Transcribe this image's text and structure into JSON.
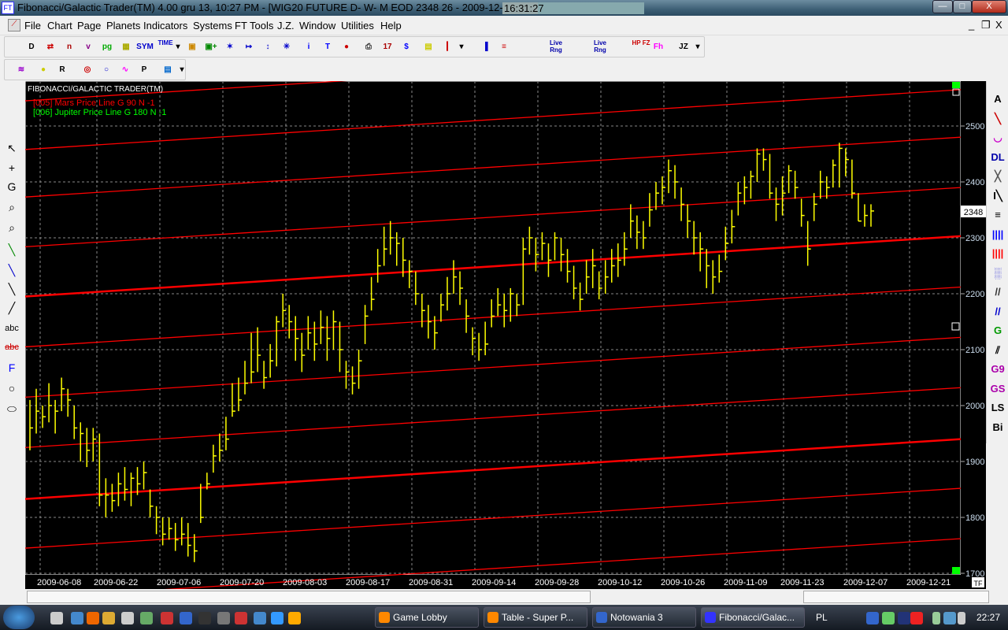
{
  "window": {
    "title": "Fibonacci/Galactic Trader(TM) 4.00 gru 13,  10:27 PM - [WIG20 FUTURE D- W- M EOD  2348     26 - 2009-12-11]",
    "clock": "16:31:27",
    "minimize": "—",
    "restore": "□",
    "close": "X"
  },
  "menu": {
    "items": [
      "File",
      "Chart",
      "Page",
      "Planets",
      "Indicators",
      "Systems",
      "FT Tools",
      "J.Z.",
      "Window",
      "Utilities",
      "Help"
    ],
    "mdi_min": "_",
    "mdi_restore": "❐",
    "mdi_close": "X"
  },
  "toolbar1": {
    "buttons": [
      {
        "name": "new-chart",
        "glyph": "D",
        "color": "#000"
      },
      {
        "name": "open-chart",
        "glyph": "⇄",
        "color": "#c00"
      },
      {
        "name": "bars-n",
        "glyph": "n",
        "color": "#a00"
      },
      {
        "name": "bars-v",
        "glyph": "v",
        "color": "#808"
      },
      {
        "name": "pg",
        "glyph": "pg",
        "color": "#0a0"
      },
      {
        "name": "grid",
        "glyph": "▦",
        "color": "#aa0"
      },
      {
        "name": "sym",
        "glyph": "SYM",
        "color": "#00c"
      },
      {
        "name": "time",
        "glyph": "TIME",
        "color": "#00c"
      },
      {
        "name": "dropdown",
        "glyph": "▾",
        "color": "#000"
      },
      {
        "name": "layers",
        "glyph": "▣",
        "color": "#c80"
      },
      {
        "name": "add-layer",
        "glyph": "▣+",
        "color": "#080"
      },
      {
        "name": "compress",
        "glyph": "✶",
        "color": "#00c"
      },
      {
        "name": "expand",
        "glyph": "↦",
        "color": "#00c"
      },
      {
        "name": "scroll",
        "glyph": "↕",
        "color": "#00c"
      },
      {
        "name": "zoom-in",
        "glyph": "✳",
        "color": "#00c"
      },
      {
        "name": "info",
        "glyph": "i",
        "color": "#00f"
      },
      {
        "name": "text",
        "glyph": "T",
        "color": "#00f"
      },
      {
        "name": "traffic-light",
        "glyph": "●",
        "color": "#c00"
      },
      {
        "name": "print",
        "glyph": "⎙",
        "color": "#333"
      },
      {
        "name": "calendar",
        "glyph": "17",
        "color": "#a00"
      },
      {
        "name": "dollar",
        "glyph": "$",
        "color": "#00f"
      },
      {
        "name": "ruler",
        "glyph": "▤",
        "color": "#cc0"
      },
      {
        "name": "candles",
        "glyph": "┃",
        "color": "#c00"
      },
      {
        "name": "dropdown2",
        "glyph": "▾",
        "color": "#000"
      },
      {
        "name": "bar-chart",
        "glyph": "▐",
        "color": "#00c"
      },
      {
        "name": "multi-chart",
        "glyph": "≡",
        "color": "#c00"
      },
      {
        "name": "live-rng-1",
        "glyph": "Live Rng",
        "color": "#00a"
      },
      {
        "name": "live-rng-2",
        "glyph": "Live Rng",
        "color": "#00a"
      },
      {
        "name": "hp-fz",
        "glyph": "HP FZ",
        "color": "#c00"
      },
      {
        "name": "fz-h",
        "glyph": "Fh",
        "color": "#f0f"
      },
      {
        "name": "jz",
        "glyph": "JZ",
        "color": "#000"
      },
      {
        "name": "dropdown3",
        "glyph": "▾",
        "color": "#000"
      }
    ]
  },
  "toolbar2": {
    "buttons": [
      {
        "name": "planet-lines",
        "glyph": "≋",
        "color": "#90c"
      },
      {
        "name": "planets-dots",
        "glyph": "●",
        "color": "#cc0"
      },
      {
        "name": "planets-r",
        "glyph": "R",
        "color": "#000"
      },
      {
        "name": "target",
        "glyph": "◎",
        "color": "#c00"
      },
      {
        "name": "wheel",
        "glyph": "○",
        "color": "#00c"
      },
      {
        "name": "cycles",
        "glyph": "∿",
        "color": "#f0f"
      },
      {
        "name": "p-cycle",
        "glyph": "P",
        "color": "#000"
      },
      {
        "name": "notes",
        "glyph": "▤",
        "color": "#06c"
      },
      {
        "name": "dropdown",
        "glyph": "▾",
        "color": "#000"
      }
    ]
  },
  "left_tools": [
    {
      "name": "pointer",
      "glyph": "↖"
    },
    {
      "name": "crosshair",
      "glyph": "+"
    },
    {
      "name": "gann",
      "glyph": "G"
    },
    {
      "name": "zoom",
      "glyph": "⌕"
    },
    {
      "name": "zoom-gray",
      "glyph": "⌕"
    },
    {
      "name": "trendline-green",
      "glyph": "╲"
    },
    {
      "name": "trendline-blue",
      "glyph": "╲"
    },
    {
      "name": "trendline-black",
      "glyph": "╲"
    },
    {
      "name": "pitchfork",
      "glyph": "╱"
    },
    {
      "name": "text-abc",
      "glyph": "abc"
    },
    {
      "name": "delete-text",
      "glyph": "abc"
    },
    {
      "name": "fib",
      "glyph": "F"
    },
    {
      "name": "circle",
      "glyph": "○"
    },
    {
      "name": "ellipse",
      "glyph": "⬭"
    }
  ],
  "right_tools": [
    {
      "name": "andrews",
      "glyph": "A",
      "color": "#000"
    },
    {
      "name": "fan",
      "glyph": "╲",
      "color": "#c00"
    },
    {
      "name": "arcs",
      "glyph": "◡",
      "color": "#c0c"
    },
    {
      "name": "dl",
      "glyph": "DL",
      "color": "#00a"
    },
    {
      "name": "cross-lines",
      "glyph": "╳",
      "color": "#555"
    },
    {
      "name": "i-fan",
      "glyph": "I╲",
      "color": "#000"
    },
    {
      "name": "horizontal-lines",
      "glyph": "≡",
      "color": "#000"
    },
    {
      "name": "vertical-blue",
      "glyph": "||||",
      "color": "#00f"
    },
    {
      "name": "vertical-red",
      "glyph": "||||",
      "color": "#f00"
    },
    {
      "name": "bar-pattern",
      "glyph": "░",
      "color": "#00c"
    },
    {
      "name": "parallel",
      "glyph": "//",
      "color": "#333"
    },
    {
      "name": "parallel-blue",
      "glyph": "//",
      "color": "#00c"
    },
    {
      "name": "grid-g",
      "glyph": "G",
      "color": "#090"
    },
    {
      "name": "gann-fan",
      "glyph": "⫽",
      "color": "#000"
    },
    {
      "name": "g9",
      "glyph": "G9",
      "color": "#a0a"
    },
    {
      "name": "gs",
      "glyph": "GS",
      "color": "#a0a"
    },
    {
      "name": "ls",
      "glyph": "LS",
      "color": "#000"
    },
    {
      "name": "bi",
      "glyph": "Bi",
      "color": "#000"
    }
  ],
  "chart": {
    "header": "FIBONACCI/GALACTIC TRADER(TM)",
    "legend": [
      {
        "label": "[005] Mars Price Line G 90 N -1",
        "color": "#ff0000"
      },
      {
        "label": "[006] Jupiter Price Line G 180 N -1",
        "color": "#00ff00"
      }
    ],
    "timeframe_button": "TF",
    "current_price_label": "2348"
  },
  "chart_data": {
    "type": "ohlc",
    "symbol": "WIG20 FUTURE",
    "ylim": [
      1700,
      2550
    ],
    "y_ticks": [
      1700,
      1800,
      1900,
      2000,
      2100,
      2200,
      2300,
      2400,
      2500
    ],
    "x_tick_labels": [
      "2009-06-08",
      "2009-06-22",
      "2009-07-06",
      "2009-07-20",
      "2009-08-03",
      "2009-08-17",
      "2009-08-31",
      "2009-09-14",
      "2009-09-28",
      "2009-10-12",
      "2009-10-26",
      "2009-11-09",
      "2009-11-23",
      "2009-12-07",
      "2009-12-21"
    ],
    "grid": true,
    "bar_color": "#ffff00",
    "last_price": 2348,
    "bars_hlc": [
      [
        2010,
        1920,
        1960
      ],
      [
        2030,
        1950,
        1990
      ],
      [
        2000,
        1960,
        1980
      ],
      [
        2040,
        1970,
        2000
      ],
      [
        2010,
        1950,
        1990
      ],
      [
        2050,
        1990,
        2030
      ],
      [
        2030,
        1980,
        2010
      ],
      [
        2000,
        1940,
        1960
      ],
      [
        1970,
        1900,
        1950
      ],
      [
        1960,
        1890,
        1920
      ],
      [
        1960,
        1900,
        1940
      ],
      [
        1950,
        1820,
        1840
      ],
      [
        1870,
        1800,
        1840
      ],
      [
        1860,
        1810,
        1830
      ],
      [
        1880,
        1820,
        1860
      ],
      [
        1890,
        1830,
        1850
      ],
      [
        1880,
        1820,
        1870
      ],
      [
        1890,
        1840,
        1860
      ],
      [
        1900,
        1850,
        1880
      ],
      [
        1850,
        1800,
        1820
      ],
      [
        1820,
        1770,
        1800
      ],
      [
        1800,
        1750,
        1770
      ],
      [
        1800,
        1760,
        1780
      ],
      [
        1790,
        1740,
        1760
      ],
      [
        1800,
        1750,
        1770
      ],
      [
        1790,
        1730,
        1750
      ],
      [
        1770,
        1720,
        1740
      ],
      [
        1860,
        1790,
        1800
      ],
      [
        1880,
        1850,
        1860
      ],
      [
        1930,
        1880,
        1910
      ],
      [
        1950,
        1900,
        1920
      ],
      [
        1980,
        1920,
        1940
      ],
      [
        2040,
        1980,
        1990
      ],
      [
        2050,
        1990,
        2010
      ],
      [
        2080,
        2020,
        2040
      ],
      [
        2130,
        2040,
        2060
      ],
      [
        2140,
        2060,
        2090
      ],
      [
        2080,
        2030,
        2050
      ],
      [
        2110,
        2050,
        2080
      ],
      [
        2160,
        2070,
        2150
      ],
      [
        2200,
        2140,
        2170
      ],
      [
        2180,
        2120,
        2150
      ],
      [
        2160,
        2080,
        2120
      ],
      [
        2130,
        2060,
        2090
      ],
      [
        2160,
        2100,
        2130
      ],
      [
        2150,
        2080,
        2110
      ],
      [
        2170,
        2110,
        2140
      ],
      [
        2160,
        2080,
        2120
      ],
      [
        2170,
        2100,
        2150
      ],
      [
        2150,
        2060,
        2100
      ],
      [
        2080,
        2030,
        2060
      ],
      [
        2070,
        2020,
        2040
      ],
      [
        2100,
        2030,
        2080
      ],
      [
        2180,
        2110,
        2160
      ],
      [
        2230,
        2170,
        2190
      ],
      [
        2280,
        2220,
        2250
      ],
      [
        2320,
        2250,
        2280
      ],
      [
        2330,
        2270,
        2300
      ],
      [
        2310,
        2250,
        2290
      ],
      [
        2300,
        2230,
        2260
      ],
      [
        2260,
        2210,
        2240
      ],
      [
        2240,
        2180,
        2200
      ],
      [
        2200,
        2140,
        2170
      ],
      [
        2180,
        2120,
        2150
      ],
      [
        2160,
        2100,
        2130
      ],
      [
        2200,
        2150,
        2180
      ],
      [
        2230,
        2170,
        2200
      ],
      [
        2260,
        2200,
        2230
      ],
      [
        2240,
        2180,
        2210
      ],
      [
        2190,
        2130,
        2160
      ],
      [
        2140,
        2090,
        2120
      ],
      [
        2130,
        2080,
        2100
      ],
      [
        2150,
        2090,
        2110
      ],
      [
        2190,
        2140,
        2160
      ],
      [
        2210,
        2160,
        2180
      ],
      [
        2200,
        2140,
        2170
      ],
      [
        2210,
        2150,
        2200
      ],
      [
        2200,
        2160,
        2180
      ],
      [
        2300,
        2180,
        2280
      ],
      [
        2320,
        2270,
        2300
      ],
      [
        2300,
        2240,
        2270
      ],
      [
        2310,
        2260,
        2290
      ],
      [
        2290,
        2230,
        2260
      ],
      [
        2310,
        2260,
        2300
      ],
      [
        2300,
        2240,
        2270
      ],
      [
        2280,
        2220,
        2240
      ],
      [
        2250,
        2190,
        2210
      ],
      [
        2220,
        2170,
        2190
      ],
      [
        2260,
        2200,
        2230
      ],
      [
        2280,
        2210,
        2250
      ],
      [
        2240,
        2190,
        2210
      ],
      [
        2260,
        2200,
        2230
      ],
      [
        2280,
        2220,
        2250
      ],
      [
        2290,
        2230,
        2260
      ],
      [
        2310,
        2250,
        2280
      ],
      [
        2360,
        2300,
        2330
      ],
      [
        2340,
        2280,
        2310
      ],
      [
        2330,
        2280,
        2300
      ],
      [
        2380,
        2320,
        2350
      ],
      [
        2400,
        2350,
        2380
      ],
      [
        2410,
        2360,
        2390
      ],
      [
        2440,
        2380,
        2420
      ],
      [
        2430,
        2370,
        2400
      ],
      [
        2390,
        2330,
        2360
      ],
      [
        2360,
        2300,
        2330
      ],
      [
        2330,
        2270,
        2300
      ],
      [
        2310,
        2240,
        2280
      ],
      [
        2280,
        2210,
        2250
      ],
      [
        2260,
        2200,
        2230
      ],
      [
        2270,
        2220,
        2240
      ],
      [
        2320,
        2260,
        2290
      ],
      [
        2350,
        2290,
        2320
      ],
      [
        2400,
        2340,
        2380
      ],
      [
        2410,
        2360,
        2390
      ],
      [
        2420,
        2370,
        2410
      ],
      [
        2460,
        2400,
        2450
      ],
      [
        2460,
        2420,
        2440
      ],
      [
        2450,
        2370,
        2380
      ],
      [
        2390,
        2330,
        2360
      ],
      [
        2410,
        2340,
        2380
      ],
      [
        2430,
        2380,
        2420
      ],
      [
        2420,
        2370,
        2390
      ],
      [
        2370,
        2320,
        2340
      ],
      [
        2330,
        2250,
        2280
      ],
      [
        2380,
        2330,
        2360
      ],
      [
        2420,
        2370,
        2400
      ],
      [
        2410,
        2370,
        2390
      ],
      [
        2440,
        2390,
        2430
      ],
      [
        2470,
        2390,
        2460
      ],
      [
        2460,
        2410,
        2440
      ],
      [
        2440,
        2370,
        2380
      ],
      [
        2380,
        2330,
        2330
      ],
      [
        2360,
        2320,
        2340
      ],
      [
        2360,
        2320,
        2348
      ]
    ],
    "price_lines": [
      {
        "start": 1655,
        "end": 1762,
        "heavy": false
      },
      {
        "start": 1745,
        "end": 1852,
        "heavy": false
      },
      {
        "start": 1833,
        "end": 1940,
        "heavy": true
      },
      {
        "start": 1925,
        "end": 2032,
        "heavy": false
      },
      {
        "start": 2015,
        "end": 2122,
        "heavy": false
      },
      {
        "start": 2105,
        "end": 2212,
        "heavy": false
      },
      {
        "start": 2195,
        "end": 2303,
        "heavy": true
      },
      {
        "start": 2284,
        "end": 2390,
        "heavy": false
      },
      {
        "start": 2373,
        "end": 2480,
        "heavy": false
      },
      {
        "start": 2458,
        "end": 2565,
        "heavy": false
      },
      {
        "start": 2545,
        "end": 2650,
        "heavy": false
      }
    ],
    "line_color": "#ff0000"
  },
  "statusbar": {
    "text": ""
  },
  "taskbar": {
    "tasks": [
      {
        "label": "Game Lobby",
        "color": "#f80"
      },
      {
        "label": "Table - Super P...",
        "color": "#f80"
      },
      {
        "label": "Notowania 3",
        "color": "#36c"
      },
      {
        "label": "Fibonacci/Galac...",
        "color": "#33f"
      }
    ],
    "language": "PL",
    "time": "22:27"
  }
}
